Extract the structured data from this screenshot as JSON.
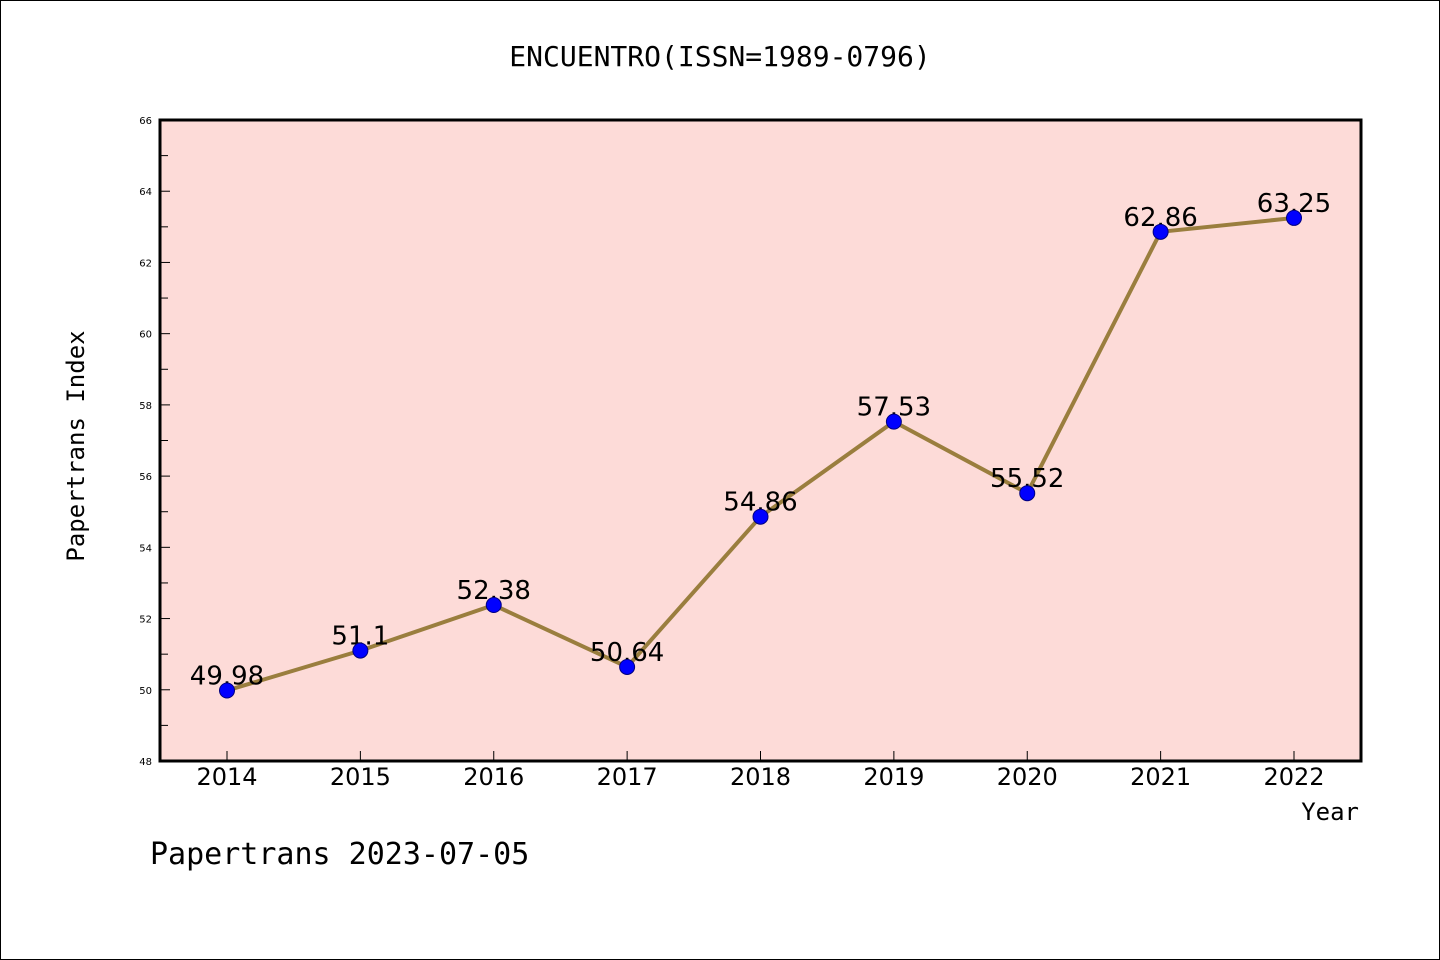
{
  "footer": "Papertrans 2023-07-05",
  "chart_data": {
    "type": "line",
    "title": "ENCUENTRO(ISSN=1989-0796)",
    "xlabel": "Year",
    "ylabel": "Papertrans Index",
    "x": [
      "2014",
      "2015",
      "2016",
      "2017",
      "2018",
      "2019",
      "2020",
      "2021",
      "2022"
    ],
    "series": [
      {
        "values": [
          49.98,
          51.1,
          52.38,
          50.64,
          54.86,
          57.53,
          55.52,
          62.86,
          63.25
        ],
        "labels": [
          "49.98",
          "51.1",
          "52.38",
          "50.64",
          "54.86",
          "57.53",
          "55.52",
          "62.86",
          "63.25"
        ]
      }
    ],
    "ylim": [
      48,
      66
    ],
    "yticks": [
      "48",
      "50",
      "52",
      "54",
      "56",
      "58",
      "60",
      "62",
      "64",
      "66"
    ],
    "grid": false,
    "colors": {
      "plot_background": "#FDDBD8",
      "line": "#9A7E3E",
      "marker": "#0000FF"
    }
  }
}
